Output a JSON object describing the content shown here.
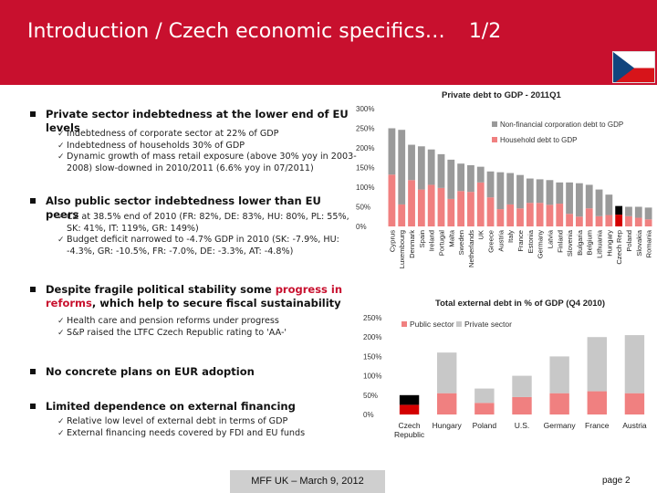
{
  "header": {
    "title": "Introduction / Czech economic specifics…",
    "page_fraction": "1/2"
  },
  "bullets": [
    {
      "main": "Private sector indebtedness at the lower end of EU levels",
      "subs": [
        "Indebtedness of corporate sector at 22% of GDP",
        "Indebtedness of households 30% of GDP",
        "Dynamic growth of mass retail exposure (above 30% yoy in 2003-2008) slow-downed in 2010/2011 (6.6% yoy in 07/2011)"
      ]
    },
    {
      "main": "Also public sector indebtedness lower than EU peers",
      "subs": [
        "CZ at 38.5% end of 2010 (FR: 82%, DE: 83%, HU: 80%, PL: 55%, SK: 41%, IT: 119%, GR: 149%)",
        "Budget deficit narrowed to ‑4.7% GDP in 2010 (SK: ‑7.9%, HU: ‑4.3%, GR: ‑10.5%, FR: ‑7.0%, DE: ‑3.3%, AT: ‑4.8%)"
      ]
    },
    {
      "main_pre": "Despite fragile political stability some ",
      "main_hl": "progress in reforms",
      "main_post": ", which help to secure fiscal sustainability",
      "subs": [
        "Health care and pension reforms under progress",
        "S&P raised the LTFC Czech Republic rating to 'AA-'"
      ]
    },
    {
      "main": "No concrete plans on EUR adoption",
      "subs": []
    },
    {
      "main": "Limited dependence on external financing",
      "subs": [
        "Relative low level of external debt in terms of GDP",
        "External financing needs covered by FDI and EU funds"
      ]
    }
  ],
  "colors": {
    "accent": "#c8102e",
    "series_pink": "#f08080",
    "series_grey": "#9a9a9a",
    "series_light_grey": "#c8c8c8",
    "highlight_red": "#d40000",
    "highlight_black": "#000000"
  },
  "chart_data": [
    {
      "type": "bar",
      "stacked": true,
      "title": "Private debt to GDP - 2011Q1",
      "ylim": [
        0,
        300
      ],
      "yticks": [
        "0%",
        "50%",
        "100%",
        "150%",
        "200%",
        "250%",
        "300%"
      ],
      "ytick_values": [
        0,
        50,
        100,
        150,
        200,
        250,
        300
      ],
      "legend_position": "top-right",
      "categories": [
        "Cyprus",
        "Luxembourg",
        "Denmark",
        "Spain",
        "Ireland",
        "Portugal",
        "Malta",
        "Sweden",
        "Netherlands",
        "UK",
        "Greece",
        "Austria",
        "Italy",
        "France",
        "Estonia",
        "Germany",
        "Latvia",
        "Finland",
        "Slovenia",
        "Bulgaria",
        "Belgium",
        "Lithuania",
        "Hungary",
        "Czech Rep",
        "Poland",
        "Slovakia",
        "Romania"
      ],
      "highlight_index": 23,
      "series": [
        {
          "name": "Household debt to GDP",
          "values": [
            132,
            56,
            118,
            94,
            106,
            98,
            70,
            90,
            88,
            112,
            74,
            44,
            56,
            46,
            60,
            60,
            55,
            58,
            32,
            25,
            46,
            26,
            29,
            30,
            26,
            22,
            18
          ]
        },
        {
          "name": "Non-financial corporation debt to GDP",
          "values": [
            118,
            190,
            90,
            110,
            90,
            86,
            100,
            70,
            68,
            40,
            66,
            94,
            80,
            85,
            62,
            60,
            63,
            54,
            80,
            85,
            60,
            68,
            52,
            22,
            24,
            28,
            30
          ]
        }
      ]
    },
    {
      "type": "bar",
      "stacked": true,
      "title": "Total external debt in % of GDP (Q4 2010)",
      "ylim": [
        0,
        250
      ],
      "yticks": [
        "0%",
        "50%",
        "100%",
        "150%",
        "200%",
        "250%"
      ],
      "ytick_values": [
        0,
        50,
        100,
        150,
        200,
        250
      ],
      "legend_position": "top-left",
      "categories": [
        "Czech Republic",
        "Hungary",
        "Poland",
        "U.S.",
        "Germany",
        "France",
        "Austria"
      ],
      "highlight_index": 0,
      "series": [
        {
          "name": "Public sector",
          "values": [
            25,
            55,
            30,
            45,
            55,
            60,
            55
          ]
        },
        {
          "name": "Private sector",
          "values": [
            25,
            105,
            37,
            55,
            95,
            140,
            150
          ]
        }
      ]
    }
  ],
  "footer": {
    "center": "MFF UK – March 9, 2012",
    "page": "page 2"
  }
}
